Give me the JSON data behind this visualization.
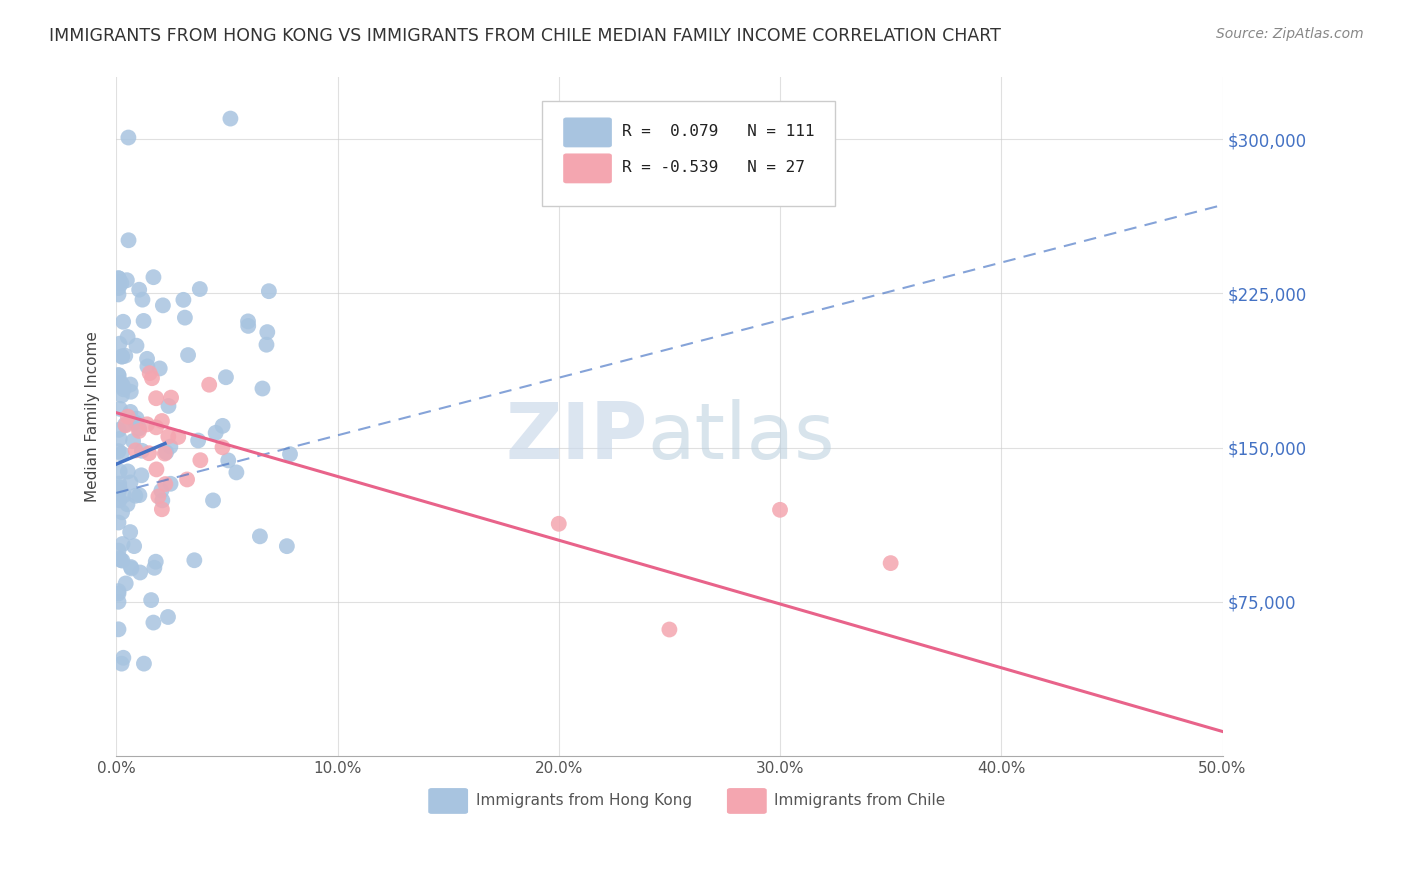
{
  "title": "IMMIGRANTS FROM HONG KONG VS IMMIGRANTS FROM CHILE MEDIAN FAMILY INCOME CORRELATION CHART",
  "source": "Source: ZipAtlas.com",
  "ylabel": "Median Family Income",
  "xlim": [
    0.0,
    0.5
  ],
  "ylim": [
    0,
    330000
  ],
  "xtick_labels": [
    "0.0%",
    "10.0%",
    "20.0%",
    "30.0%",
    "40.0%",
    "50.0%"
  ],
  "xtick_values": [
    0.0,
    0.1,
    0.2,
    0.3,
    0.4,
    0.5
  ],
  "ytick_values": [
    75000,
    150000,
    225000,
    300000
  ],
  "ytick_labels": [
    "$75,000",
    "$150,000",
    "$225,000",
    "$300,000"
  ],
  "hk_color": "#a8c4e0",
  "chile_color": "#f4a6b0",
  "hk_trend_color": "#4472c4",
  "chile_trend_color": "#e8638a",
  "watermark_zip": "ZIP",
  "watermark_atlas": "atlas",
  "watermark_color_zip": "#c8d8ee",
  "watermark_color_atlas": "#b0c8e0",
  "background_color": "#ffffff",
  "hk_R": "0.079",
  "hk_N": "111",
  "chile_R": "-0.539",
  "chile_N": "27",
  "legend_label_hk": "R =  0.079   N = 111",
  "legend_label_chile": "R = -0.539   N = 27",
  "bottom_legend_hk": "Immigrants from Hong Kong",
  "bottom_legend_chile": "Immigrants from Chile"
}
